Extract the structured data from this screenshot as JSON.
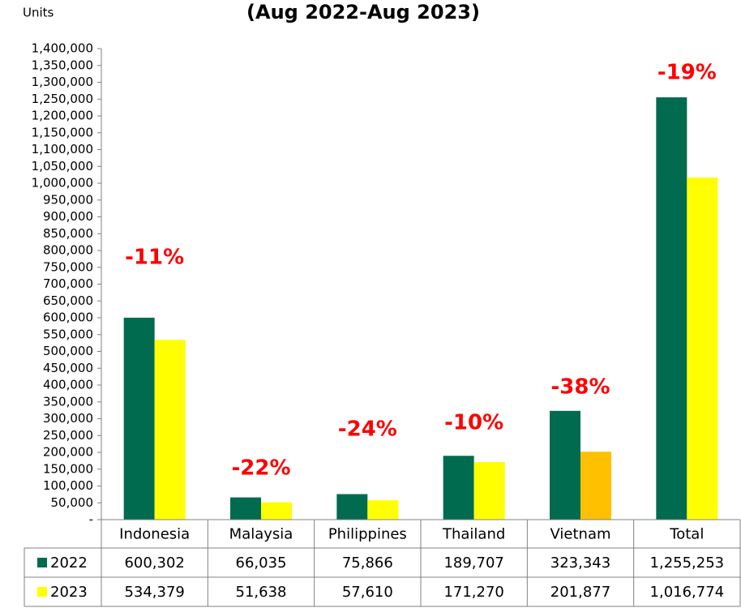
{
  "chart_data": {
    "type": "bar",
    "title": "(Aug 2022-Aug 2023)",
    "y_label": "Units",
    "categories": [
      "Indonesia",
      "Malaysia",
      "Philippines",
      "Thailand",
      "Vietnam",
      "Total"
    ],
    "series": [
      {
        "name": "2022",
        "color": "#006b4f",
        "values": [
          600302,
          66035,
          75866,
          189707,
          323343,
          1255253
        ],
        "value_labels": [
          "600,302",
          "66,035",
          "75,866",
          "189,707",
          "323,343",
          "1,255,253"
        ]
      },
      {
        "name": "2023",
        "color": "#ffff00",
        "colors": [
          "#ffff00",
          "#ffff00",
          "#ffff00",
          "#ffff00",
          "#ffc000",
          "#ffff00"
        ],
        "values": [
          534379,
          51638,
          57610,
          171270,
          201877,
          1016774
        ],
        "value_labels": [
          "534,379",
          "51,638",
          "57,610",
          "171,270",
          "201,877",
          "1,016,774"
        ]
      }
    ],
    "change_labels": [
      "-11%",
      "-22%",
      "-24%",
      "-10%",
      "-38%",
      "-19%"
    ],
    "change_color": "#ff0000",
    "ylim": [
      0,
      1400000
    ],
    "yticks": [
      {
        "value": 0,
        "label": "-"
      },
      {
        "value": 50000,
        "label": "50,000"
      },
      {
        "value": 100000,
        "label": "100,000"
      },
      {
        "value": 150000,
        "label": "150,000"
      },
      {
        "value": 200000,
        "label": "200,000"
      },
      {
        "value": 250000,
        "label": "250,000"
      },
      {
        "value": 300000,
        "label": "300,000"
      },
      {
        "value": 350000,
        "label": "350,000"
      },
      {
        "value": 400000,
        "label": "400,000"
      },
      {
        "value": 450000,
        "label": "450,000"
      },
      {
        "value": 500000,
        "label": "500,000"
      },
      {
        "value": 550000,
        "label": "550,000"
      },
      {
        "value": 600000,
        "label": "600,000"
      },
      {
        "value": 650000,
        "label": "650,000"
      },
      {
        "value": 700000,
        "label": "700,000"
      },
      {
        "value": 750000,
        "label": "750,000"
      },
      {
        "value": 800000,
        "label": "800,000"
      },
      {
        "value": 850000,
        "label": "850,000"
      },
      {
        "value": 900000,
        "label": "900,000"
      },
      {
        "value": 950000,
        "label": "950,000"
      },
      {
        "value": 1000000,
        "label": "1,000,000"
      },
      {
        "value": 1050000,
        "label": "1,050,000"
      },
      {
        "value": 1100000,
        "label": "1,100,000"
      },
      {
        "value": 1150000,
        "label": "1,150,000"
      },
      {
        "value": 1200000,
        "label": "1,200,000"
      },
      {
        "value": 1250000,
        "label": "1,250,000"
      },
      {
        "value": 1300000,
        "label": "1,300,000"
      },
      {
        "value": 1350000,
        "label": "1,350,000"
      },
      {
        "value": 1400000,
        "label": "1,400,000"
      }
    ],
    "grid": false
  }
}
